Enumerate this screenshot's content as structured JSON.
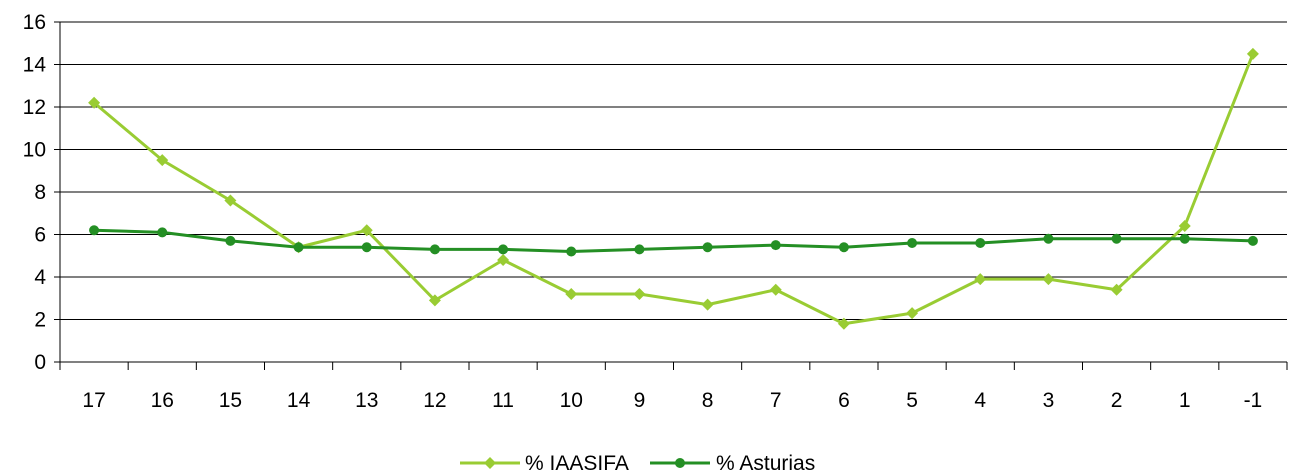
{
  "chart_data": {
    "type": "line",
    "title": "",
    "xlabel": "",
    "ylabel": "",
    "categories": [
      "17",
      "16",
      "15",
      "14",
      "13",
      "12",
      "11",
      "10",
      "9",
      "8",
      "7",
      "6",
      "5",
      "4",
      "3",
      "2",
      "1",
      "-1"
    ],
    "ylim": [
      0,
      16
    ],
    "yticks": [
      "0",
      "2",
      "4",
      "6",
      "8",
      "10",
      "12",
      "14",
      "16"
    ],
    "grid": true,
    "legend": "bottom",
    "series": [
      {
        "name": "% IAASIFA",
        "marker": "diamond",
        "color": "#99cc33",
        "values": [
          12.2,
          9.5,
          7.6,
          5.4,
          6.2,
          2.9,
          4.8,
          3.2,
          3.2,
          2.7,
          3.4,
          1.8,
          2.3,
          3.9,
          3.9,
          3.4,
          6.4,
          14.5
        ]
      },
      {
        "name": "% Asturias",
        "marker": "circle",
        "color": "#248f24",
        "values": [
          6.2,
          6.1,
          5.7,
          5.4,
          5.4,
          5.3,
          5.3,
          5.2,
          5.3,
          5.4,
          5.5,
          5.4,
          5.6,
          5.6,
          5.8,
          5.8,
          5.8,
          5.7
        ]
      }
    ]
  }
}
